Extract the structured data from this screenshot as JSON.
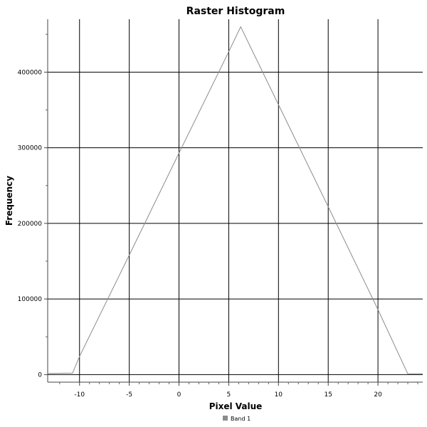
{
  "chart_data": {
    "type": "line",
    "title": "Raster Histogram",
    "xlabel": "Pixel Value",
    "ylabel": "Frequency",
    "xlim": [
      -13.2,
      24.5
    ],
    "ylim": [
      -10000,
      470000
    ],
    "x_ticks": [
      -10,
      -5,
      0,
      5,
      10,
      15,
      20
    ],
    "x_tick_labels": [
      "-10",
      "-5",
      "0",
      "5",
      "10",
      "15",
      "20"
    ],
    "x_minor_ticks": [
      -12,
      -9,
      -8,
      -7,
      -6,
      -4,
      -3,
      -2,
      -1,
      1,
      2,
      3,
      4,
      6,
      7,
      8,
      9,
      11,
      12,
      13,
      14,
      16,
      17,
      18,
      19,
      21,
      22,
      23,
      24
    ],
    "y_ticks": [
      0,
      100000,
      200000,
      300000,
      400000
    ],
    "y_tick_labels": [
      "0",
      "100000",
      "200000",
      "300000",
      "400000"
    ],
    "y_minor_ticks": [
      50000,
      150000,
      250000,
      350000,
      450000
    ],
    "grid": true,
    "legend_position": "bottom-center",
    "series": [
      {
        "name": "Band 1",
        "color": "#8c8c8c",
        "x": [
          -13.2,
          -10.7,
          -10.0,
          -5.0,
          0.0,
          5.0,
          6.2,
          10.0,
          15.0,
          20.0,
          23.0,
          24.5
        ],
        "y": [
          1500,
          2000,
          24000,
          158000,
          293000,
          427000,
          460000,
          357000,
          222000,
          86000,
          1000,
          1000
        ]
      }
    ]
  }
}
